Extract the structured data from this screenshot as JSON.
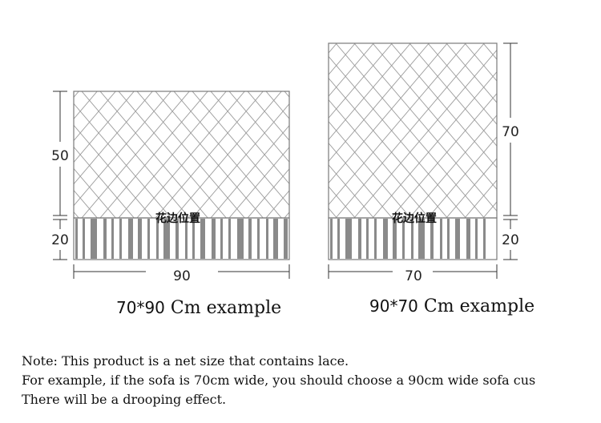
{
  "panels": {
    "left": {
      "top_height_label": "50",
      "lace_height_label": "20",
      "width_label": "90",
      "lace_label": "花边位置",
      "caption_size": "70*90",
      "caption_rest": "Cm example"
    },
    "right": {
      "top_height_label": "70",
      "lace_height_label": "20",
      "width_label": "70",
      "lace_label": "花边位置",
      "caption_size": "90*70",
      "caption_rest": "Cm example"
    }
  },
  "colors": {
    "mesh_line": "#9a9a9a",
    "frame": "#7a7a7a",
    "lace_stripe": "#8a8a8a"
  },
  "notes": [
    "Note: This product is a net size that contains lace.",
    "For example, if the sofa is 70cm wide, you should choose a 90cm wide sofa cus",
    "There will be a drooping effect."
  ]
}
